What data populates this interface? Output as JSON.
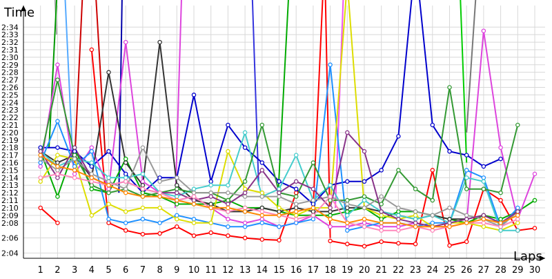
{
  "chart_data": {
    "type": "line",
    "title": "",
    "xlabel": "Laps",
    "ylabel": "Time",
    "x": [
      1,
      2,
      3,
      4,
      5,
      6,
      7,
      8,
      9,
      10,
      11,
      12,
      13,
      14,
      15,
      16,
      17,
      18,
      19,
      20,
      21,
      22,
      23,
      24,
      25,
      26,
      27,
      28,
      29,
      30
    ],
    "xlim": [
      0,
      30.5
    ],
    "ylim": [
      2.033,
      2.365
    ],
    "yticks": [
      {
        "label": "2:04",
        "value": 2.04
      },
      {
        "label": "2:06",
        "value": 2.06
      },
      {
        "label": "2:08",
        "value": 2.08
      },
      {
        "label": "2:09",
        "value": 2.09
      },
      {
        "label": "2:10",
        "value": 2.1
      },
      {
        "label": "2:11",
        "value": 2.11
      },
      {
        "label": "2:12",
        "value": 2.12
      },
      {
        "label": "2:13",
        "value": 2.13
      },
      {
        "label": "2:14",
        "value": 2.14
      },
      {
        "label": "2:15",
        "value": 2.15
      },
      {
        "label": "2:16",
        "value": 2.16
      },
      {
        "label": "2:17",
        "value": 2.17
      },
      {
        "label": "2:18",
        "value": 2.18
      },
      {
        "label": "2:19",
        "value": 2.19
      },
      {
        "label": "2:20",
        "value": 2.2
      },
      {
        "label": "2:21",
        "value": 2.21
      },
      {
        "label": "2:22",
        "value": 2.22
      },
      {
        "label": "2:23",
        "value": 2.23
      },
      {
        "label": "2:24",
        "value": 2.24
      },
      {
        "label": "2:25",
        "value": 2.25
      },
      {
        "label": "2:26",
        "value": 2.26
      },
      {
        "label": "2:27",
        "value": 2.27
      },
      {
        "label": "2:28",
        "value": 2.28
      },
      {
        "label": "2:29",
        "value": 2.29
      },
      {
        "label": "2:30",
        "value": 2.3
      },
      {
        "label": "2:31",
        "value": 2.31
      },
      {
        "label": "2:32",
        "value": 2.32
      },
      {
        "label": "2:33",
        "value": 2.33
      },
      {
        "label": "2:34",
        "value": 2.34
      }
    ],
    "grid": true,
    "legend": "none",
    "series": [
      {
        "color": "#ff0000",
        "values": [
          2.1,
          2.08,
          null,
          2.31,
          2.08,
          2.07,
          2.065,
          2.066,
          2.075,
          2.063,
          2.067,
          2.063,
          2.06,
          2.058,
          2.057,
          2.12,
          null,
          2.056,
          2.052,
          2.049,
          2.055,
          2.053,
          2.052,
          2.15,
          2.05,
          2.055,
          2.125,
          2.11,
          2.07,
          2.073
        ]
      },
      {
        "color": "#0000cc",
        "values": [
          2.18,
          2.18,
          2.175,
          2.155,
          2.175,
          2.145,
          2.12,
          2.14,
          2.14,
          2.25,
          2.135,
          2.21,
          2.18,
          2.16,
          2.135,
          2.125,
          2.105,
          2.13,
          2.135,
          2.135,
          2.15,
          2.195,
          2.43,
          2.21,
          2.175,
          2.17,
          2.155,
          2.165,
          null,
          null
        ]
      },
      {
        "color": "#00aa00",
        "values": [
          2.175,
          2.115,
          2.18,
          2.125,
          2.12,
          2.165,
          2.12,
          2.115,
          2.105,
          2.105,
          2.105,
          2.11,
          2.1,
          2.1,
          2.095,
          2.09,
          2.09,
          2.09,
          2.095,
          2.1,
          2.085,
          2.095,
          2.095,
          2.09,
          2.085,
          2.08,
          2.09,
          2.085,
          2.095,
          2.11
        ]
      },
      {
        "color": "#dd44dd",
        "values": [
          2.155,
          2.29,
          2.145,
          2.18,
          2.125,
          2.32,
          2.135,
          2.12,
          2.11,
          2.115,
          2.1,
          2.085,
          2.08,
          2.085,
          2.075,
          2.08,
          2.09,
          2.075,
          2.075,
          2.08,
          2.075,
          2.075,
          2.08,
          2.075,
          2.075,
          2.08,
          2.335,
          2.18,
          2.085,
          2.145
        ]
      },
      {
        "color": "#333333",
        "values": [
          2.175,
          2.16,
          2.17,
          2.14,
          2.28,
          2.16,
          2.13,
          2.32,
          2.13,
          2.11,
          2.105,
          2.095,
          2.095,
          2.1,
          2.095,
          2.1,
          2.095,
          2.095,
          2.1,
          2.1,
          2.095,
          2.09,
          2.085,
          2.09,
          2.085,
          2.085,
          2.09,
          2.08,
          2.095,
          null
        ]
      },
      {
        "color": "#1e90ff",
        "values": [
          2.16,
          2.215,
          2.155,
          2.175,
          2.085,
          2.08,
          2.085,
          2.08,
          2.09,
          2.085,
          2.08,
          2.075,
          2.075,
          2.08,
          2.075,
          2.08,
          2.085,
          2.29,
          2.07,
          2.075,
          2.08,
          2.08,
          2.075,
          2.08,
          2.08,
          2.15,
          2.14,
          2.075,
          2.1,
          null
        ]
      },
      {
        "color": "#dddd00",
        "values": [
          2.135,
          2.17,
          2.165,
          2.09,
          2.105,
          2.095,
          2.1,
          2.1,
          2.085,
          2.08,
          2.08,
          2.175,
          2.125,
          2.12,
          2.1,
          2.09,
          2.1,
          2.1,
          2.4,
          2.1,
          2.09,
          2.085,
          2.09,
          2.075,
          2.08,
          2.08,
          2.075,
          2.07,
          2.08,
          null
        ]
      },
      {
        "color": "#44cccc",
        "values": [
          2.175,
          2.155,
          2.165,
          2.16,
          2.14,
          2.14,
          2.145,
          2.12,
          2.115,
          2.125,
          2.13,
          2.13,
          2.2,
          2.115,
          2.125,
          2.17,
          2.11,
          2.13,
          2.09,
          2.11,
          2.095,
          2.09,
          2.085,
          2.09,
          2.08,
          2.14,
          2.135,
          2.07,
          2.07,
          null
        ]
      },
      {
        "color": "#339933",
        "values": [
          2.165,
          2.27,
          2.17,
          2.13,
          2.12,
          2.125,
          2.115,
          2.12,
          2.125,
          2.12,
          2.12,
          2.11,
          2.135,
          2.21,
          2.12,
          2.115,
          2.16,
          2.11,
          2.11,
          2.115,
          2.105,
          2.15,
          2.125,
          2.11,
          2.26,
          2.125,
          2.125,
          2.12,
          2.21,
          null
        ]
      },
      {
        "color": "#999999",
        "values": [
          2.165,
          2.15,
          2.165,
          2.145,
          2.135,
          2.125,
          2.18,
          2.135,
          2.14,
          2.12,
          2.12,
          2.12,
          2.115,
          2.115,
          2.115,
          2.105,
          2.11,
          2.115,
          2.105,
          2.1,
          2.115,
          2.1,
          2.095,
          2.09,
          2.1,
          2.09,
          2.085,
          2.075,
          2.095,
          null
        ]
      },
      {
        "color": "#883388",
        "values": [
          2.175,
          2.14,
          2.18,
          2.14,
          2.13,
          2.135,
          2.125,
          2.12,
          2.12,
          2.11,
          2.115,
          2.105,
          2.12,
          2.15,
          2.12,
          2.135,
          2.125,
          2.1,
          2.2,
          2.175,
          2.095,
          2.085,
          2.08,
          2.075,
          2.08,
          2.085,
          2.09,
          2.08,
          2.095,
          null
        ]
      },
      {
        "color": "#ff88bb",
        "values": [
          2.14,
          2.145,
          2.14,
          2.135,
          2.13,
          2.135,
          2.125,
          2.12,
          2.11,
          2.115,
          2.1,
          2.095,
          2.1,
          2.095,
          2.09,
          2.085,
          2.09,
          2.115,
          2.08,
          2.075,
          2.07,
          2.07,
          2.075,
          2.07,
          2.075,
          2.08,
          2.08,
          2.075,
          2.085,
          null
        ]
      },
      {
        "color": "#ff8800",
        "values": [
          2.17,
          2.155,
          2.15,
          2.14,
          2.13,
          2.12,
          2.115,
          2.115,
          2.11,
          2.105,
          2.1,
          2.1,
          2.095,
          2.09,
          2.09,
          2.095,
          2.1,
          2.085,
          2.08,
          2.085,
          2.08,
          2.08,
          2.075,
          2.075,
          2.075,
          2.08,
          2.085,
          2.08,
          2.09,
          null
        ]
      }
    ],
    "escape_lines": [
      {
        "color": "#cc0000",
        "from": [
          3,
          2.16
        ],
        "to": [
          3.5,
          2.4
        ]
      },
      {
        "color": "#cc0000",
        "from": [
          4.2,
          2.4
        ],
        "to": [
          4.8,
          2.17
        ]
      },
      {
        "color": "#ff0000",
        "from": [
          17,
          2.1
        ],
        "to": [
          17.6,
          2.4
        ]
      },
      {
        "color": "#ff0000",
        "from": [
          17.7,
          2.4
        ],
        "to": [
          18,
          2.06
        ]
      },
      {
        "color": "#00cc00",
        "from": [
          25.6,
          2.4
        ],
        "to": [
          26,
          2.16
        ]
      },
      {
        "color": "#777777",
        "from": [
          26,
          2.2
        ],
        "to": [
          26.6,
          2.4
        ]
      },
      {
        "color": "#3333dd",
        "from": [
          13.4,
          2.4
        ],
        "to": [
          13.8,
          2.13
        ]
      },
      {
        "color": "#55aaff",
        "from": [
          2.4,
          2.4
        ],
        "to": [
          2.9,
          2.16
        ]
      },
      {
        "color": "#aaaaaa",
        "from": [
          1.8,
          2.4
        ],
        "to": [
          1.95,
          2.33
        ]
      },
      {
        "color": "#009900",
        "from": [
          1.5,
          2.18
        ],
        "to": [
          2,
          2.4
        ]
      },
      {
        "color": "#0000aa",
        "from": [
          5.6,
          2.12
        ],
        "to": [
          5.8,
          2.4
        ]
      },
      {
        "color": "#dd44dd",
        "from": [
          8.9,
          2.1
        ],
        "to": [
          9.3,
          2.4
        ]
      },
      {
        "color": "#ee55ee",
        "from": [
          18.3,
          2.1
        ],
        "to": [
          18.8,
          2.4
        ]
      },
      {
        "color": "#00aa00",
        "from": [
          14.9,
          2.1
        ],
        "to": [
          15.6,
          2.4
        ]
      }
    ]
  }
}
